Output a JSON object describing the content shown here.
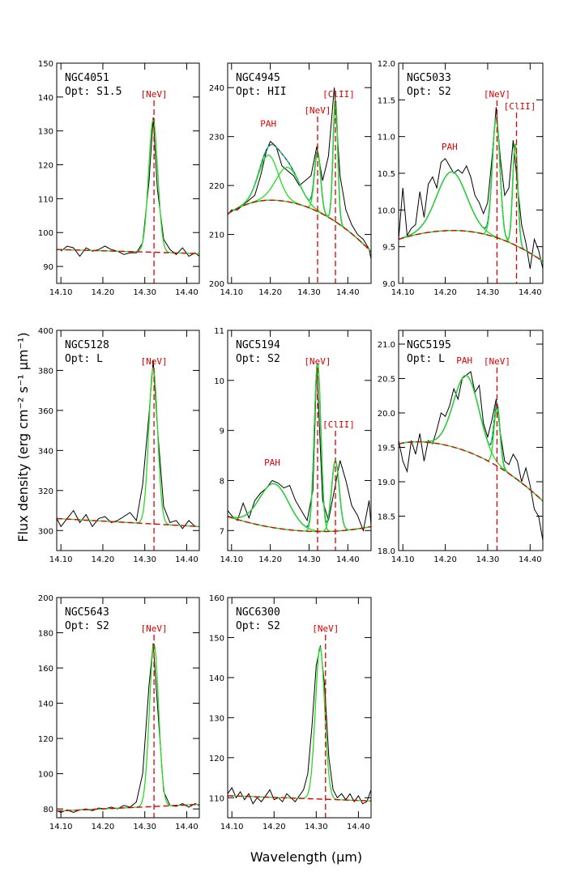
{
  "chart_data": [
    {
      "type": "line",
      "galaxy": "NGC4051",
      "opt_class": "Opt: S1.5",
      "xlim": [
        14.09,
        14.43
      ],
      "ylim": [
        85,
        150
      ],
      "xticks": [
        "14.10",
        "14.20",
        "14.30",
        "14.40"
      ],
      "yticks": [
        90,
        100,
        110,
        120,
        130,
        140,
        150
      ],
      "observed": {
        "x": [
          14.1,
          14.115,
          14.13,
          14.145,
          14.16,
          14.175,
          14.19,
          14.205,
          14.22,
          14.235,
          14.25,
          14.265,
          14.28,
          14.295,
          14.31,
          14.32,
          14.33,
          14.345,
          14.36,
          14.375,
          14.39,
          14.405,
          14.42,
          14.43
        ],
        "y": [
          94.5,
          96,
          95.5,
          93,
          95.5,
          94.5,
          95,
          96,
          95,
          94.5,
          93.5,
          94,
          94,
          97,
          115,
          134,
          113,
          98,
          95,
          93.5,
          95.5,
          93,
          94,
          93
        ]
      },
      "continuum": {
        "type": "linear",
        "x0": 14.09,
        "y0": 95.0,
        "x1": 14.43,
        "y1": 93.8
      },
      "components": [
        {
          "center": 14.32,
          "amp": 39,
          "sigma": 0.011
        }
      ],
      "lines": [
        {
          "label": "[NeV]",
          "x": 14.322
        }
      ]
    },
    {
      "type": "line",
      "galaxy": "NGC4945",
      "opt_class": "Opt: HII",
      "xlim": [
        14.09,
        14.46
      ],
      "ylim": [
        200,
        245
      ],
      "xticks": [
        "14.10",
        "14.20",
        "14.30",
        "14.40"
      ],
      "yticks": [
        200,
        210,
        220,
        230,
        240
      ],
      "observed": {
        "x": [
          14.09,
          14.1,
          14.115,
          14.13,
          14.145,
          14.16,
          14.175,
          14.19,
          14.2,
          14.215,
          14.23,
          14.245,
          14.26,
          14.275,
          14.29,
          14.305,
          14.32,
          14.335,
          14.35,
          14.365,
          14.38,
          14.395,
          14.41,
          14.425,
          14.44,
          14.455,
          14.46
        ],
        "y": [
          214,
          215,
          215,
          216,
          217,
          218,
          222,
          227,
          229,
          228,
          224,
          223,
          222,
          220,
          221,
          222,
          228,
          221,
          226,
          240,
          222,
          215,
          212,
          210,
          209,
          207,
          205
        ]
      },
      "continuum": {
        "type": "parabola",
        "x0": 14.09,
        "y0": 214.2,
        "xpeak": 14.2,
        "ypeak": 217.0,
        "x1": 14.46,
        "y1": 206.5
      },
      "components": [
        {
          "center": 14.195,
          "amp": 9.2,
          "sigma": 0.025
        },
        {
          "center": 14.245,
          "amp": 7.0,
          "sigma": 0.03
        },
        {
          "center": 14.322,
          "amp": 12.0,
          "sigma": 0.008
        },
        {
          "center": 14.368,
          "amp": 25.0,
          "sigma": 0.006
        }
      ],
      "lines": [
        {
          "label": "PAH",
          "x": 14.195,
          "label_y": 232
        },
        {
          "label": "[NeV]",
          "x": 14.322
        },
        {
          "label": "[ClII]",
          "x": 14.368
        }
      ]
    },
    {
      "type": "line",
      "galaxy": "NGC5033",
      "opt_class": "Opt: S2",
      "xlim": [
        14.09,
        14.43
      ],
      "ylim": [
        9.0,
        12.0
      ],
      "xticks": [
        "14.10",
        "14.20",
        "14.30",
        "14.40"
      ],
      "yticks": [
        "9.0",
        "9.5",
        "10.0",
        "10.5",
        "11.0",
        "11.5",
        "12.0"
      ],
      "observed": {
        "x": [
          14.09,
          14.1,
          14.11,
          14.12,
          14.13,
          14.14,
          14.15,
          14.16,
          14.17,
          14.18,
          14.19,
          14.2,
          14.21,
          14.22,
          14.23,
          14.24,
          14.25,
          14.26,
          14.27,
          14.28,
          14.29,
          14.3,
          14.31,
          14.32,
          14.33,
          14.34,
          14.35,
          14.36,
          14.37,
          14.38,
          14.39,
          14.4,
          14.41,
          14.42,
          14.43
        ],
        "y": [
          9.6,
          10.3,
          9.65,
          9.75,
          9.8,
          10.25,
          9.9,
          10.35,
          10.45,
          10.3,
          10.65,
          10.7,
          10.6,
          10.5,
          10.55,
          10.5,
          10.6,
          10.45,
          10.2,
          10.1,
          9.95,
          10.1,
          10.7,
          11.4,
          10.7,
          10.2,
          10.3,
          10.95,
          10.35,
          9.8,
          9.55,
          9.2,
          9.6,
          9.45,
          9.2
        ]
      },
      "continuum": {
        "type": "parabola",
        "x0": 14.09,
        "y0": 9.6,
        "xpeak": 14.22,
        "ypeak": 9.72,
        "x1": 14.43,
        "y1": 9.3
      },
      "components": [
        {
          "center": 14.215,
          "amp": 0.8,
          "sigma": 0.035
        },
        {
          "center": 14.32,
          "amp": 1.62,
          "sigma": 0.009
        },
        {
          "center": 14.365,
          "amp": 1.38,
          "sigma": 0.006
        }
      ],
      "lines": [
        {
          "label": "PAH",
          "x": 14.21,
          "label_y": 10.82
        },
        {
          "label": "[NeV]",
          "x": 14.322
        },
        {
          "label": "[ClII]",
          "x": 14.368
        }
      ]
    },
    {
      "type": "line",
      "galaxy": "NGC5128",
      "opt_class": "Opt: L",
      "xlim": [
        14.09,
        14.43
      ],
      "ylim": [
        290,
        400
      ],
      "xticks": [
        "14.10",
        "14.20",
        "14.30",
        "14.40"
      ],
      "yticks": [
        300,
        320,
        340,
        360,
        380,
        400
      ],
      "observed": {
        "x": [
          14.09,
          14.1,
          14.115,
          14.13,
          14.145,
          14.16,
          14.175,
          14.19,
          14.205,
          14.22,
          14.235,
          14.25,
          14.265,
          14.28,
          14.295,
          14.31,
          14.32,
          14.33,
          14.345,
          14.36,
          14.375,
          14.39,
          14.405,
          14.42,
          14.43
        ],
        "y": [
          306,
          302,
          306,
          310,
          304,
          308,
          302,
          306,
          307,
          304,
          305,
          307,
          309,
          305,
          323,
          358,
          385,
          352,
          312,
          304,
          305,
          301,
          305,
          302,
          302
        ]
      },
      "continuum": {
        "type": "linear",
        "x0": 14.09,
        "y0": 306,
        "x1": 14.43,
        "y1": 302
      },
      "components": [
        {
          "center": 14.32,
          "amp": 78,
          "sigma": 0.0105
        }
      ],
      "lines": [
        {
          "label": "[NeV]",
          "x": 14.322
        }
      ]
    },
    {
      "type": "line",
      "galaxy": "NGC5194",
      "opt_class": "Opt: S2",
      "xlim": [
        14.09,
        14.46
      ],
      "ylim": [
        6.6,
        11.0
      ],
      "xticks": [
        "14.10",
        "14.20",
        "14.30",
        "14.40"
      ],
      "yticks": [
        7,
        8,
        9,
        10,
        11
      ],
      "observed": {
        "x": [
          14.09,
          14.1,
          14.115,
          14.13,
          14.145,
          14.16,
          14.175,
          14.19,
          14.205,
          14.22,
          14.235,
          14.25,
          14.265,
          14.28,
          14.295,
          14.31,
          14.32,
          14.335,
          14.35,
          14.365,
          14.38,
          14.395,
          14.41,
          14.425,
          14.44,
          14.455,
          14.46
        ],
        "y": [
          7.4,
          7.3,
          7.2,
          7.55,
          7.25,
          7.6,
          7.75,
          7.85,
          8.0,
          7.95,
          7.85,
          7.9,
          7.6,
          7.4,
          7.2,
          7.8,
          10.3,
          7.6,
          7.2,
          7.8,
          8.4,
          8.0,
          7.5,
          7.3,
          7.0,
          7.6,
          7.1
        ]
      },
      "continuum": {
        "type": "parabola",
        "x0": 14.09,
        "y0": 7.28,
        "xpeak": 14.33,
        "ypeak": 6.98,
        "x1": 14.46,
        "y1": 7.08,
        "opens": "up"
      },
      "components": [
        {
          "center": 14.21,
          "amp": 0.88,
          "sigma": 0.038
        },
        {
          "center": 14.322,
          "amp": 3.35,
          "sigma": 0.0085
        },
        {
          "center": 14.368,
          "amp": 1.4,
          "sigma": 0.01
        }
      ],
      "lines": [
        {
          "label": "PAH",
          "x": 14.205,
          "label_y": 8.3
        },
        {
          "label": "[NeV]",
          "x": 14.322
        },
        {
          "label": "[ClII]",
          "x": 14.368
        }
      ]
    },
    {
      "type": "line",
      "galaxy": "NGC5195",
      "opt_class": "Opt: L",
      "xlim": [
        14.09,
        14.43
      ],
      "ylim": [
        18.0,
        21.2
      ],
      "xticks": [
        "14.10",
        "14.20",
        "14.30",
        "14.40"
      ],
      "yticks": [
        "18.0",
        "18.5",
        "19.0",
        "19.5",
        "20.0",
        "20.5",
        "21.0"
      ],
      "observed": {
        "x": [
          14.09,
          14.1,
          14.11,
          14.12,
          14.13,
          14.14,
          14.15,
          14.16,
          14.17,
          14.18,
          14.19,
          14.2,
          14.21,
          14.22,
          14.23,
          14.24,
          14.25,
          14.26,
          14.27,
          14.28,
          14.29,
          14.3,
          14.31,
          14.32,
          14.33,
          14.34,
          14.35,
          14.36,
          14.37,
          14.38,
          14.39,
          14.4,
          14.41,
          14.42,
          14.43
        ],
        "y": [
          19.6,
          19.3,
          19.15,
          19.6,
          19.4,
          19.7,
          19.3,
          19.6,
          19.55,
          19.75,
          20.0,
          19.95,
          20.1,
          20.35,
          20.2,
          20.5,
          20.55,
          20.6,
          20.3,
          20.4,
          19.85,
          19.65,
          19.9,
          20.2,
          19.7,
          19.3,
          19.25,
          19.4,
          19.3,
          19.0,
          19.2,
          18.95,
          18.6,
          18.5,
          18.15
        ]
      },
      "continuum": {
        "type": "parabola",
        "x0": 14.09,
        "y0": 19.55,
        "xpeak": 14.13,
        "ypeak": 19.58,
        "x1": 14.43,
        "y1": 18.72
      },
      "components": [
        {
          "center": 14.25,
          "amp": 1.1,
          "sigma": 0.03
        },
        {
          "center": 14.322,
          "amp": 0.85,
          "sigma": 0.007
        }
      ],
      "lines": [
        {
          "label": "PAH",
          "x": 14.245,
          "label_y": 20.72
        },
        {
          "label": "[NeV]",
          "x": 14.322
        }
      ]
    },
    {
      "type": "line",
      "galaxy": "NGC5643",
      "opt_class": "Opt: S2",
      "xlim": [
        14.09,
        14.43
      ],
      "ylim": [
        75,
        200
      ],
      "xticks": [
        "14.10",
        "14.20",
        "14.30",
        "14.40"
      ],
      "yticks": [
        80,
        100,
        120,
        140,
        160,
        180,
        200
      ],
      "observed": {
        "x": [
          14.09,
          14.1,
          14.115,
          14.13,
          14.145,
          14.16,
          14.175,
          14.19,
          14.205,
          14.22,
          14.235,
          14.25,
          14.265,
          14.28,
          14.295,
          14.31,
          14.32,
          14.33,
          14.345,
          14.36,
          14.375,
          14.39,
          14.405,
          14.42,
          14.43
        ],
        "y": [
          79,
          78,
          79.5,
          78,
          79.5,
          80,
          79,
          80.5,
          80,
          81,
          80,
          82,
          81,
          84,
          100,
          150,
          174,
          140,
          90,
          82,
          81.5,
          83,
          81,
          83,
          82
        ]
      },
      "continuum": {
        "type": "linear",
        "x0": 14.09,
        "y0": 78.8,
        "x1": 14.43,
        "y1": 82.6
      },
      "components": [
        {
          "center": 14.322,
          "amp": 92,
          "sigma": 0.011
        }
      ],
      "lines": [
        {
          "label": "[NeV]",
          "x": 14.322
        }
      ]
    },
    {
      "type": "line",
      "galaxy": "NGC6300",
      "opt_class": "Opt: S2",
      "xlim": [
        14.09,
        14.43
      ],
      "ylim": [
        105,
        160
      ],
      "xticks": [
        "14.10",
        "14.20",
        "14.30",
        "14.40"
      ],
      "yticks": [
        110,
        120,
        130,
        140,
        150,
        160
      ],
      "observed": {
        "x": [
          14.09,
          14.1,
          14.11,
          14.12,
          14.13,
          14.14,
          14.15,
          14.16,
          14.17,
          14.18,
          14.19,
          14.2,
          14.21,
          14.22,
          14.23,
          14.24,
          14.25,
          14.26,
          14.27,
          14.28,
          14.29,
          14.3,
          14.31,
          14.32,
          14.33,
          14.34,
          14.35,
          14.36,
          14.37,
          14.38,
          14.39,
          14.4,
          14.41,
          14.42,
          14.43
        ],
        "y": [
          111,
          112.5,
          110,
          111.5,
          109.5,
          111,
          108.5,
          110,
          109,
          110.5,
          112,
          109.5,
          110,
          109,
          111,
          110,
          109,
          110.5,
          112,
          116,
          128,
          143,
          148,
          138,
          120,
          112,
          110,
          111,
          109.5,
          111,
          109,
          110.5,
          108.5,
          109,
          112
        ]
      },
      "continuum": {
        "type": "linear",
        "x0": 14.09,
        "y0": 110.5,
        "x1": 14.43,
        "y1": 109.2
      },
      "components": [
        {
          "center": 14.309,
          "amp": 38,
          "sigma": 0.011
        }
      ],
      "lines": [
        {
          "label": "[NeV]",
          "x": 14.322
        }
      ]
    }
  ],
  "axes": {
    "ylabel": "Flux density (erg cm⁻² s⁻¹ μm⁻¹)",
    "xlabel": "Wavelength (μm)"
  },
  "colors": {
    "observed": "#000000",
    "continuum": "#e00000",
    "component": "#22dd22",
    "total": "#1c3fbf",
    "line_marker": "#e00000"
  }
}
